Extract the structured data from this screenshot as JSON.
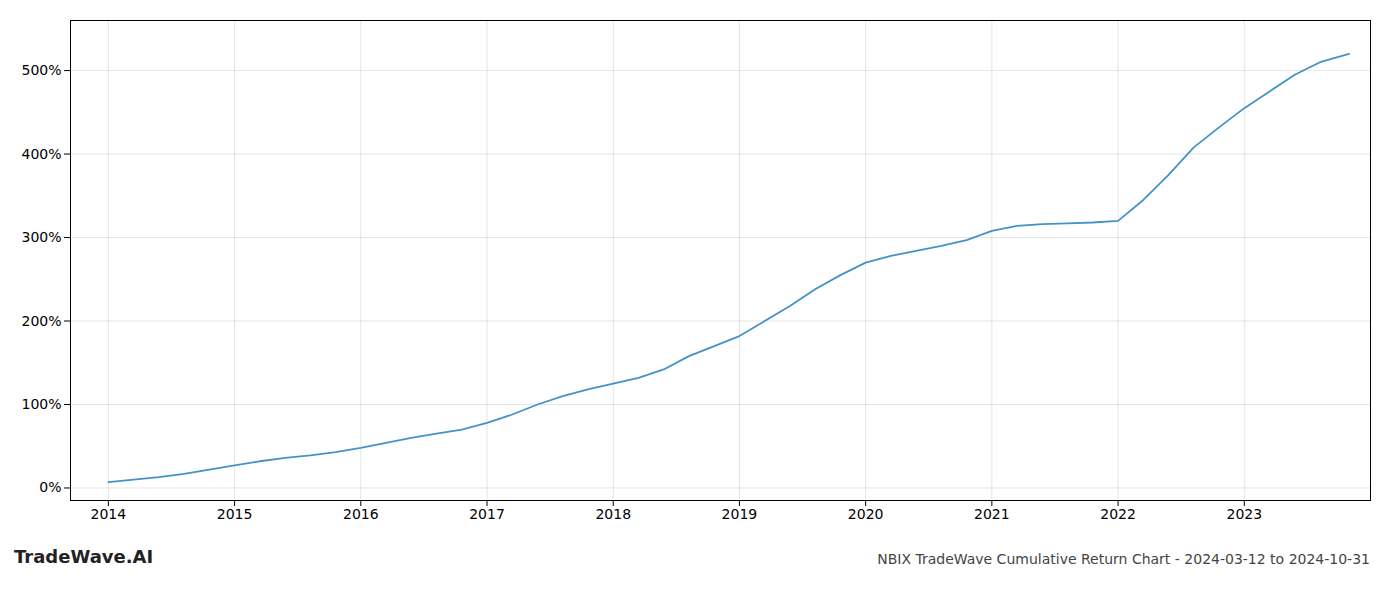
{
  "chart_data": {
    "type": "line",
    "title": "NBIX TradeWave Cumulative Return Chart - 2024-03-12 to 2024-10-31",
    "annotations": [
      {
        "text": "TradeWave.AI"
      }
    ],
    "x": [
      2014.0,
      2014.2,
      2014.4,
      2014.6,
      2014.8,
      2015.0,
      2015.2,
      2015.4,
      2015.6,
      2015.8,
      2016.0,
      2016.2,
      2016.4,
      2016.6,
      2016.8,
      2017.0,
      2017.2,
      2017.4,
      2017.6,
      2017.8,
      2018.0,
      2018.2,
      2018.4,
      2018.6,
      2018.8,
      2019.0,
      2019.2,
      2019.4,
      2019.6,
      2019.8,
      2020.0,
      2020.2,
      2020.4,
      2020.6,
      2020.8,
      2021.0,
      2021.2,
      2021.4,
      2021.6,
      2021.8,
      2022.0,
      2022.2,
      2022.4,
      2022.6,
      2022.8,
      2023.0,
      2023.2,
      2023.4,
      2023.6,
      2023.83
    ],
    "values": [
      7,
      10,
      13,
      17,
      22,
      27,
      32,
      36,
      39,
      43,
      48,
      54,
      60,
      65,
      70,
      78,
      88,
      100,
      110,
      118,
      125,
      132,
      142,
      158,
      170,
      182,
      200,
      218,
      238,
      255,
      270,
      278,
      284,
      290,
      297,
      308,
      314,
      316,
      317,
      318,
      320,
      345,
      375,
      408,
      432,
      455,
      475,
      495,
      510,
      520
    ],
    "color": "#4393c7",
    "xlim": [
      2013.7,
      2024.0
    ],
    "ylim": [
      -15,
      560
    ],
    "xticks": [
      2014,
      2015,
      2016,
      2017,
      2018,
      2019,
      2020,
      2021,
      2022,
      2023
    ],
    "yticks": [
      {
        "value": 0,
        "label": "0%"
      },
      {
        "value": 100,
        "label": "100%"
      },
      {
        "value": 200,
        "label": "200%"
      },
      {
        "value": 300,
        "label": "300%"
      },
      {
        "value": 400,
        "label": "400%"
      },
      {
        "value": 500,
        "label": "500%"
      }
    ],
    "grid": true
  }
}
